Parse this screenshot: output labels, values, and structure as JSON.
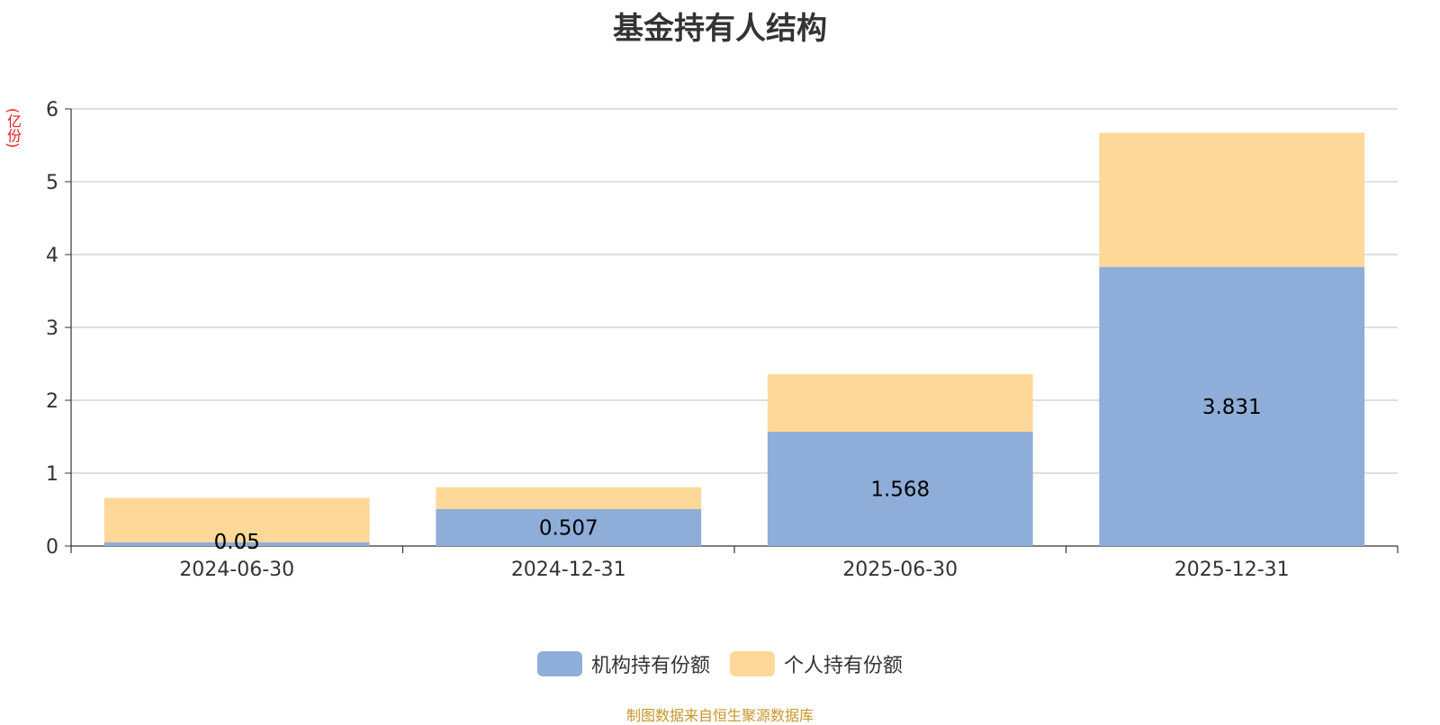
{
  "chart_data": {
    "type": "bar",
    "stacked": true,
    "title": "基金持有人结构",
    "unit_label": "(亿份)",
    "categories": [
      "2024-06-30",
      "2024-12-31",
      "2025-06-30",
      "2025-12-31"
    ],
    "series": [
      {
        "name": "机构持有份额",
        "color": "#8eaed9",
        "values": [
          0.05,
          0.507,
          1.568,
          3.831
        ],
        "labels": [
          "0.05",
          "0.507",
          "1.568",
          "3.831"
        ]
      },
      {
        "name": "个人持有份额",
        "color": "#fdd899",
        "values": [
          0.61,
          0.3,
          0.79,
          1.84
        ]
      }
    ],
    "ylim": [
      0,
      6
    ],
    "yticks": [
      "0",
      "1",
      "2",
      "3",
      "4",
      "5",
      "6"
    ],
    "grid": true,
    "legend_position": "bottom-center"
  },
  "footer": {
    "source": "制图数据来自恒生聚源数据库"
  }
}
